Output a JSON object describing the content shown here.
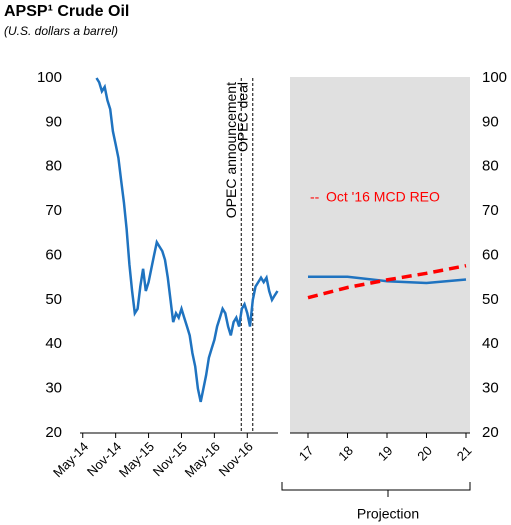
{
  "chart_data": [
    {
      "type": "line",
      "title": "APSP¹ Crude Oil",
      "subtitle": "(U.S. dollars a barrel)",
      "x": [
        2.5,
        3.0,
        3.5,
        4.0,
        4.5,
        5.0,
        5.5,
        6.0,
        6.5,
        7.0,
        7.5,
        8.0,
        8.5,
        9.0,
        9.5,
        10.0,
        10.5,
        11.0,
        11.5,
        12.0,
        12.5,
        13.0,
        13.5,
        14.0,
        14.5,
        15.0,
        15.5,
        16.0,
        16.5,
        17.0,
        17.5,
        18.0,
        18.5,
        19.0,
        19.5,
        20.0,
        20.5,
        21.0,
        21.5,
        22.0,
        22.5,
        23.0,
        23.5,
        24.0,
        24.5,
        25.0,
        25.5,
        26.0,
        26.5,
        27.0,
        27.5,
        28.0,
        28.5,
        29.0,
        29.5,
        30.0,
        30.5,
        31.0,
        31.5,
        32.0,
        32.5,
        33.0,
        33.5,
        34.0,
        34.5,
        35.0,
        35.5
      ],
      "series": [
        {
          "color": "#1f73c0",
          "values": [
            100,
            99,
            97,
            98,
            95,
            93,
            88,
            85,
            82,
            77,
            72,
            66,
            58,
            52,
            47,
            48,
            53,
            57,
            52,
            54,
            57,
            60,
            63,
            62,
            61,
            59,
            55,
            50,
            45,
            47,
            46,
            48,
            46,
            44,
            42,
            38,
            35,
            30,
            27,
            30,
            33,
            37,
            39,
            41,
            44,
            46,
            48,
            47,
            44,
            42,
            45,
            46,
            44,
            48,
            49,
            47,
            44,
            50,
            53,
            54,
            55,
            54,
            55,
            52,
            50,
            51,
            52
          ]
        }
      ],
      "xlim": [
        -0.5,
        35.6
      ],
      "xticks": [
        {
          "value": 0,
          "label": "May-14"
        },
        {
          "value": 6,
          "label": "Nov-14"
        },
        {
          "value": 12,
          "label": "May-15"
        },
        {
          "value": 18,
          "label": "Nov-15"
        },
        {
          "value": 24,
          "label": "May-16"
        },
        {
          "value": 30,
          "label": "Nov-16"
        }
      ],
      "ylim": [
        20,
        100
      ],
      "yticks": [
        20,
        30,
        40,
        50,
        60,
        70,
        80,
        90,
        100
      ],
      "annotations": [
        {
          "x": 28.9,
          "label": "OPEC announcement"
        },
        {
          "x": 31,
          "label": "OPEC deal"
        }
      ]
    },
    {
      "type": "line",
      "categories": [
        "17",
        "18",
        "19",
        "20",
        "21"
      ],
      "series": [
        {
          "color": "#1f73c0",
          "values": [
            55.2,
            55.2,
            54.2,
            53.8,
            54.6
          ]
        },
        {
          "name": "Oct '16 MCD  REO",
          "color": "#ff0000",
          "dashed": true,
          "values": [
            50.5,
            52.8,
            54.5,
            56,
            57.7
          ]
        }
      ],
      "ylim": [
        20,
        100
      ],
      "yticks": [
        20,
        30,
        40,
        50,
        60,
        70,
        80,
        90,
        100
      ],
      "shaded": "#e0e0e0",
      "bracket_label": "Projection"
    }
  ]
}
